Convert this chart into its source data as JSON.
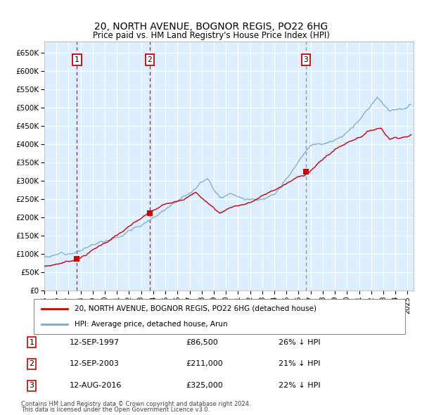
{
  "title": "20, NORTH AVENUE, BOGNOR REGIS, PO22 6HG",
  "subtitle": "Price paid vs. HM Land Registry's House Price Index (HPI)",
  "legend_line1": "20, NORTH AVENUE, BOGNOR REGIS, PO22 6HG (detached house)",
  "legend_line2": "HPI: Average price, detached house, Arun",
  "footnote1": "Contains HM Land Registry data © Crown copyright and database right 2024.",
  "footnote2": "This data is licensed under the Open Government Licence v3.0.",
  "transactions": [
    {
      "num": 1,
      "date": "12-SEP-1997",
      "price": 86500,
      "pct": "26% ↓ HPI",
      "year": 1997.7
    },
    {
      "num": 2,
      "date": "12-SEP-2003",
      "price": 211000,
      "pct": "21% ↓ HPI",
      "year": 2003.7
    },
    {
      "num": 3,
      "date": "12-AUG-2016",
      "price": 325000,
      "pct": "22% ↓ HPI",
      "year": 2016.6
    }
  ],
  "ylim": [
    0,
    680000
  ],
  "xlim_start": 1995.0,
  "xlim_end": 2025.5,
  "yticks": [
    0,
    50000,
    100000,
    150000,
    200000,
    250000,
    300000,
    350000,
    400000,
    450000,
    500000,
    550000,
    600000,
    650000
  ],
  "ytick_labels": [
    "£0",
    "£50K",
    "£100K",
    "£150K",
    "£200K",
    "£250K",
    "£300K",
    "£350K",
    "£400K",
    "£450K",
    "£500K",
    "£550K",
    "£600K",
    "£650K"
  ],
  "xticks": [
    1995,
    1996,
    1997,
    1998,
    1999,
    2000,
    2001,
    2002,
    2003,
    2004,
    2005,
    2006,
    2007,
    2008,
    2009,
    2010,
    2011,
    2012,
    2013,
    2014,
    2015,
    2016,
    2017,
    2018,
    2019,
    2020,
    2021,
    2022,
    2023,
    2024,
    2025
  ],
  "red_color": "#cc0000",
  "blue_color": "#7aabcf",
  "dashed_red_color": "#cc0000",
  "dashed_grey_color": "#888888",
  "background_plot": "#ddeeff",
  "grid_color": "#ffffff",
  "box_color": "#cc0000"
}
